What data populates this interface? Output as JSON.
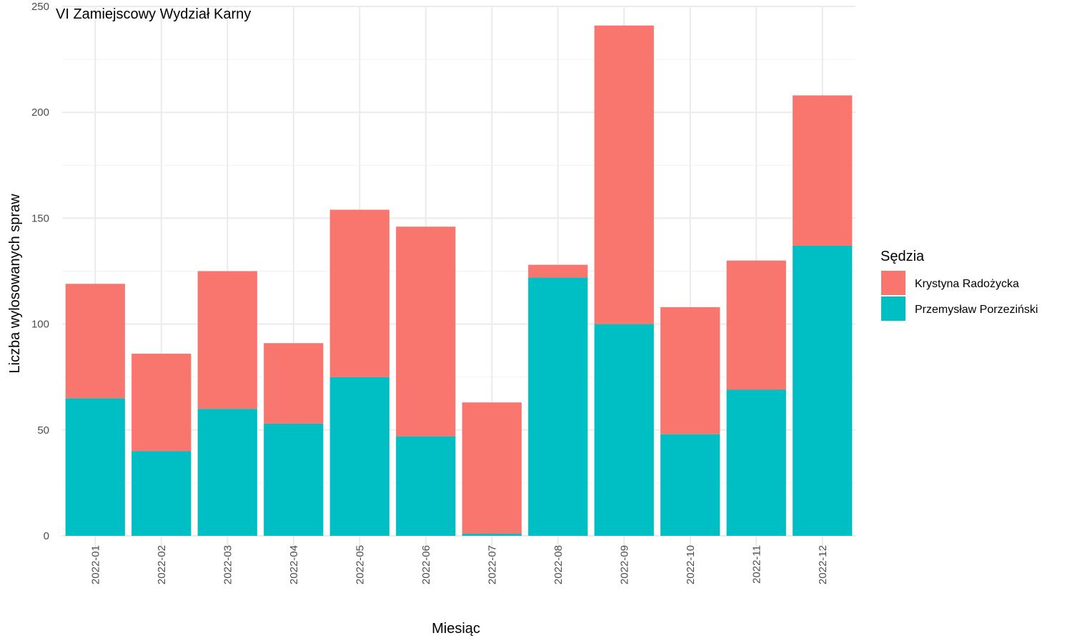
{
  "chart_data": {
    "type": "bar",
    "stacked": true,
    "title": "VI Zamiejscowy Wydział Karny",
    "xlabel": "Miesiąc",
    "ylabel": "Liczba wylosowanych spraw",
    "categories": [
      "2022-01",
      "2022-02",
      "2022-03",
      "2022-04",
      "2022-05",
      "2022-06",
      "2022-07",
      "2022-08",
      "2022-09",
      "2022-10",
      "2022-11",
      "2022-12"
    ],
    "series": [
      {
        "name": "Krystyna Radożycka",
        "color": "#F8766D",
        "values": [
          54,
          46,
          65,
          38,
          79,
          99,
          62,
          6,
          141,
          60,
          61,
          71
        ]
      },
      {
        "name": "Przemysław Porzeziński",
        "color": "#00BFC4",
        "values": [
          65,
          40,
          60,
          53,
          75,
          47,
          1,
          122,
          100,
          48,
          69,
          137
        ]
      }
    ],
    "stack_order": [
      "Przemysław Porzeziński",
      "Krystyna Radożycka"
    ],
    "ylim": [
      0,
      250
    ],
    "yticks": [
      0,
      50,
      100,
      150,
      200,
      250
    ],
    "grid": true,
    "legend": {
      "title": "Sędzia",
      "position": "right"
    }
  }
}
